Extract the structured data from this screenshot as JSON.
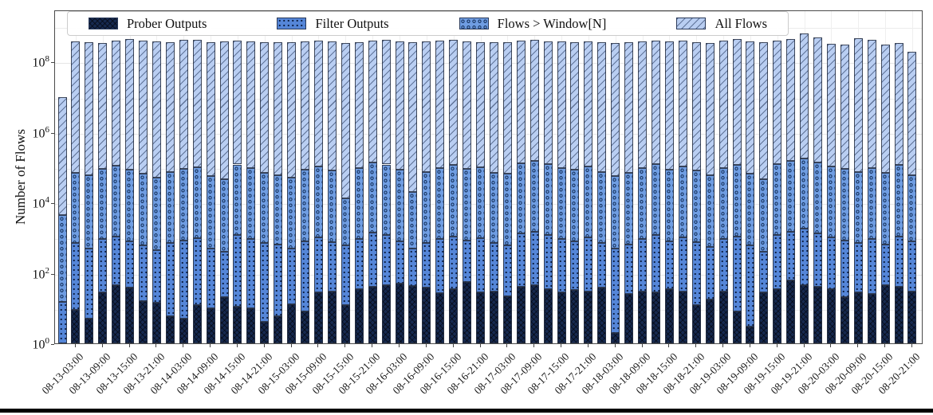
{
  "figure": {
    "kind": "stacked log-scale bar chart of network flow counts over time"
  },
  "chart_data": {
    "type": "bar",
    "stacked": true,
    "log_scale_y": true,
    "title": "",
    "xlabel": "",
    "ylabel": "Number of Flows",
    "ylim": [
      1,
      3000000000
    ],
    "grid": "on (faint, horizontal each decade, vertical at labeled ticks)",
    "legend_position": "top inside plot, horizontal row",
    "n_bars": 64,
    "x_note": "bars every 3 hours; tick labels every 6 hours under every second bar",
    "yticks": [
      {
        "base": "10",
        "exp": "0"
      },
      {
        "base": "10",
        "exp": "2"
      },
      {
        "base": "10",
        "exp": "4"
      },
      {
        "base": "10",
        "exp": "6"
      },
      {
        "base": "10",
        "exp": "8"
      }
    ],
    "x_tick_labels": [
      "08-13-03:00",
      "08-13-09:00",
      "08-13-15:00",
      "08-13-21:00",
      "08-14-03:00",
      "08-14-09:00",
      "08-14-15:00",
      "08-14-21:00",
      "08-15-03:00",
      "08-15-09:00",
      "08-15-15:00",
      "08-15-21:00",
      "08-16-03:00",
      "08-16-09:00",
      "08-16-15:00",
      "08-16-21:00",
      "08-17-03:00",
      "08-17-09:00",
      "08-17-15:00",
      "08-17-21:00",
      "08-18-03:00",
      "08-18-09:00",
      "08-18-15:00",
      "08-18-21:00",
      "08-19-03:00",
      "08-19-09:00",
      "08-19-15:00",
      "08-19-21:00",
      "08-20-03:00",
      "08-20-09:00",
      "08-20-15:00",
      "08-20-21:00"
    ],
    "series": [
      {
        "name": "Prober Outputs",
        "pattern": "dense-crosshatch",
        "color": "#16294f",
        "values": [
          1,
          9,
          5,
          28,
          45,
          38,
          16,
          14,
          6,
          5,
          12,
          10,
          20,
          11,
          10,
          4,
          6,
          13,
          8,
          28,
          30,
          12,
          35,
          40,
          45,
          50,
          42,
          38,
          26,
          35,
          55,
          28,
          30,
          22,
          40,
          45,
          35,
          28,
          32,
          30,
          38,
          2,
          25,
          30,
          28,
          35,
          30,
          12,
          18,
          30,
          8,
          3,
          28,
          35,
          60,
          45,
          40,
          35,
          20,
          28,
          25,
          45,
          40,
          30
        ]
      },
      {
        "name": "Filter Outputs",
        "pattern": "dots",
        "color": "#5586d8",
        "values": [
          15,
          700,
          500,
          900,
          1100,
          800,
          600,
          450,
          700,
          850,
          950,
          500,
          400,
          1200,
          900,
          700,
          650,
          500,
          800,
          1000,
          750,
          600,
          900,
          1400,
          1200,
          800,
          500,
          700,
          900,
          1100,
          850,
          950,
          700,
          600,
          1300,
          1500,
          1200,
          900,
          800,
          1000,
          700,
          500,
          650,
          900,
          1200,
          800,
          1000,
          750,
          550,
          900,
          1100,
          600,
          400,
          1200,
          1500,
          1800,
          1300,
          1000,
          850,
          700,
          900,
          650,
          1100,
          800
        ]
      },
      {
        "name": "Flows > Window[N]",
        "pattern": "circles",
        "color": "#6f9de2",
        "values": [
          4500,
          70000,
          60000,
          90000,
          110000,
          85000,
          65000,
          50000,
          75000,
          90000,
          100000,
          55000,
          45000,
          120000,
          95000,
          70000,
          60000,
          50000,
          85000,
          105000,
          80000,
          13000,
          95000,
          140000,
          120000,
          85000,
          20000,
          75000,
          95000,
          115000,
          90000,
          100000,
          70000,
          65000,
          130000,
          150000,
          125000,
          95000,
          85000,
          105000,
          75000,
          55000,
          70000,
          95000,
          125000,
          85000,
          105000,
          80000,
          60000,
          95000,
          115000,
          65000,
          45000,
          125000,
          155000,
          180000,
          140000,
          105000,
          90000,
          75000,
          95000,
          70000,
          115000,
          60000
        ]
      },
      {
        "name": "All Flows",
        "pattern": "diagonal-hatch",
        "color": "#b9cef2",
        "values": [
          10000000,
          380000000,
          350000000,
          340000000,
          390000000,
          430000000,
          400000000,
          370000000,
          360000000,
          410000000,
          420000000,
          350000000,
          380000000,
          390000000,
          370000000,
          360000000,
          350000000,
          360000000,
          380000000,
          400000000,
          370000000,
          340000000,
          360000000,
          390000000,
          410000000,
          380000000,
          350000000,
          370000000,
          390000000,
          420000000,
          380000000,
          360000000,
          350000000,
          360000000,
          390000000,
          410000000,
          380000000,
          370000000,
          350000000,
          380000000,
          360000000,
          340000000,
          350000000,
          380000000,
          400000000,
          370000000,
          390000000,
          360000000,
          340000000,
          390000000,
          430000000,
          370000000,
          350000000,
          400000000,
          440000000,
          630000000,
          490000000,
          320000000,
          310000000,
          460000000,
          420000000,
          300000000,
          330000000,
          190000000
        ]
      }
    ]
  }
}
